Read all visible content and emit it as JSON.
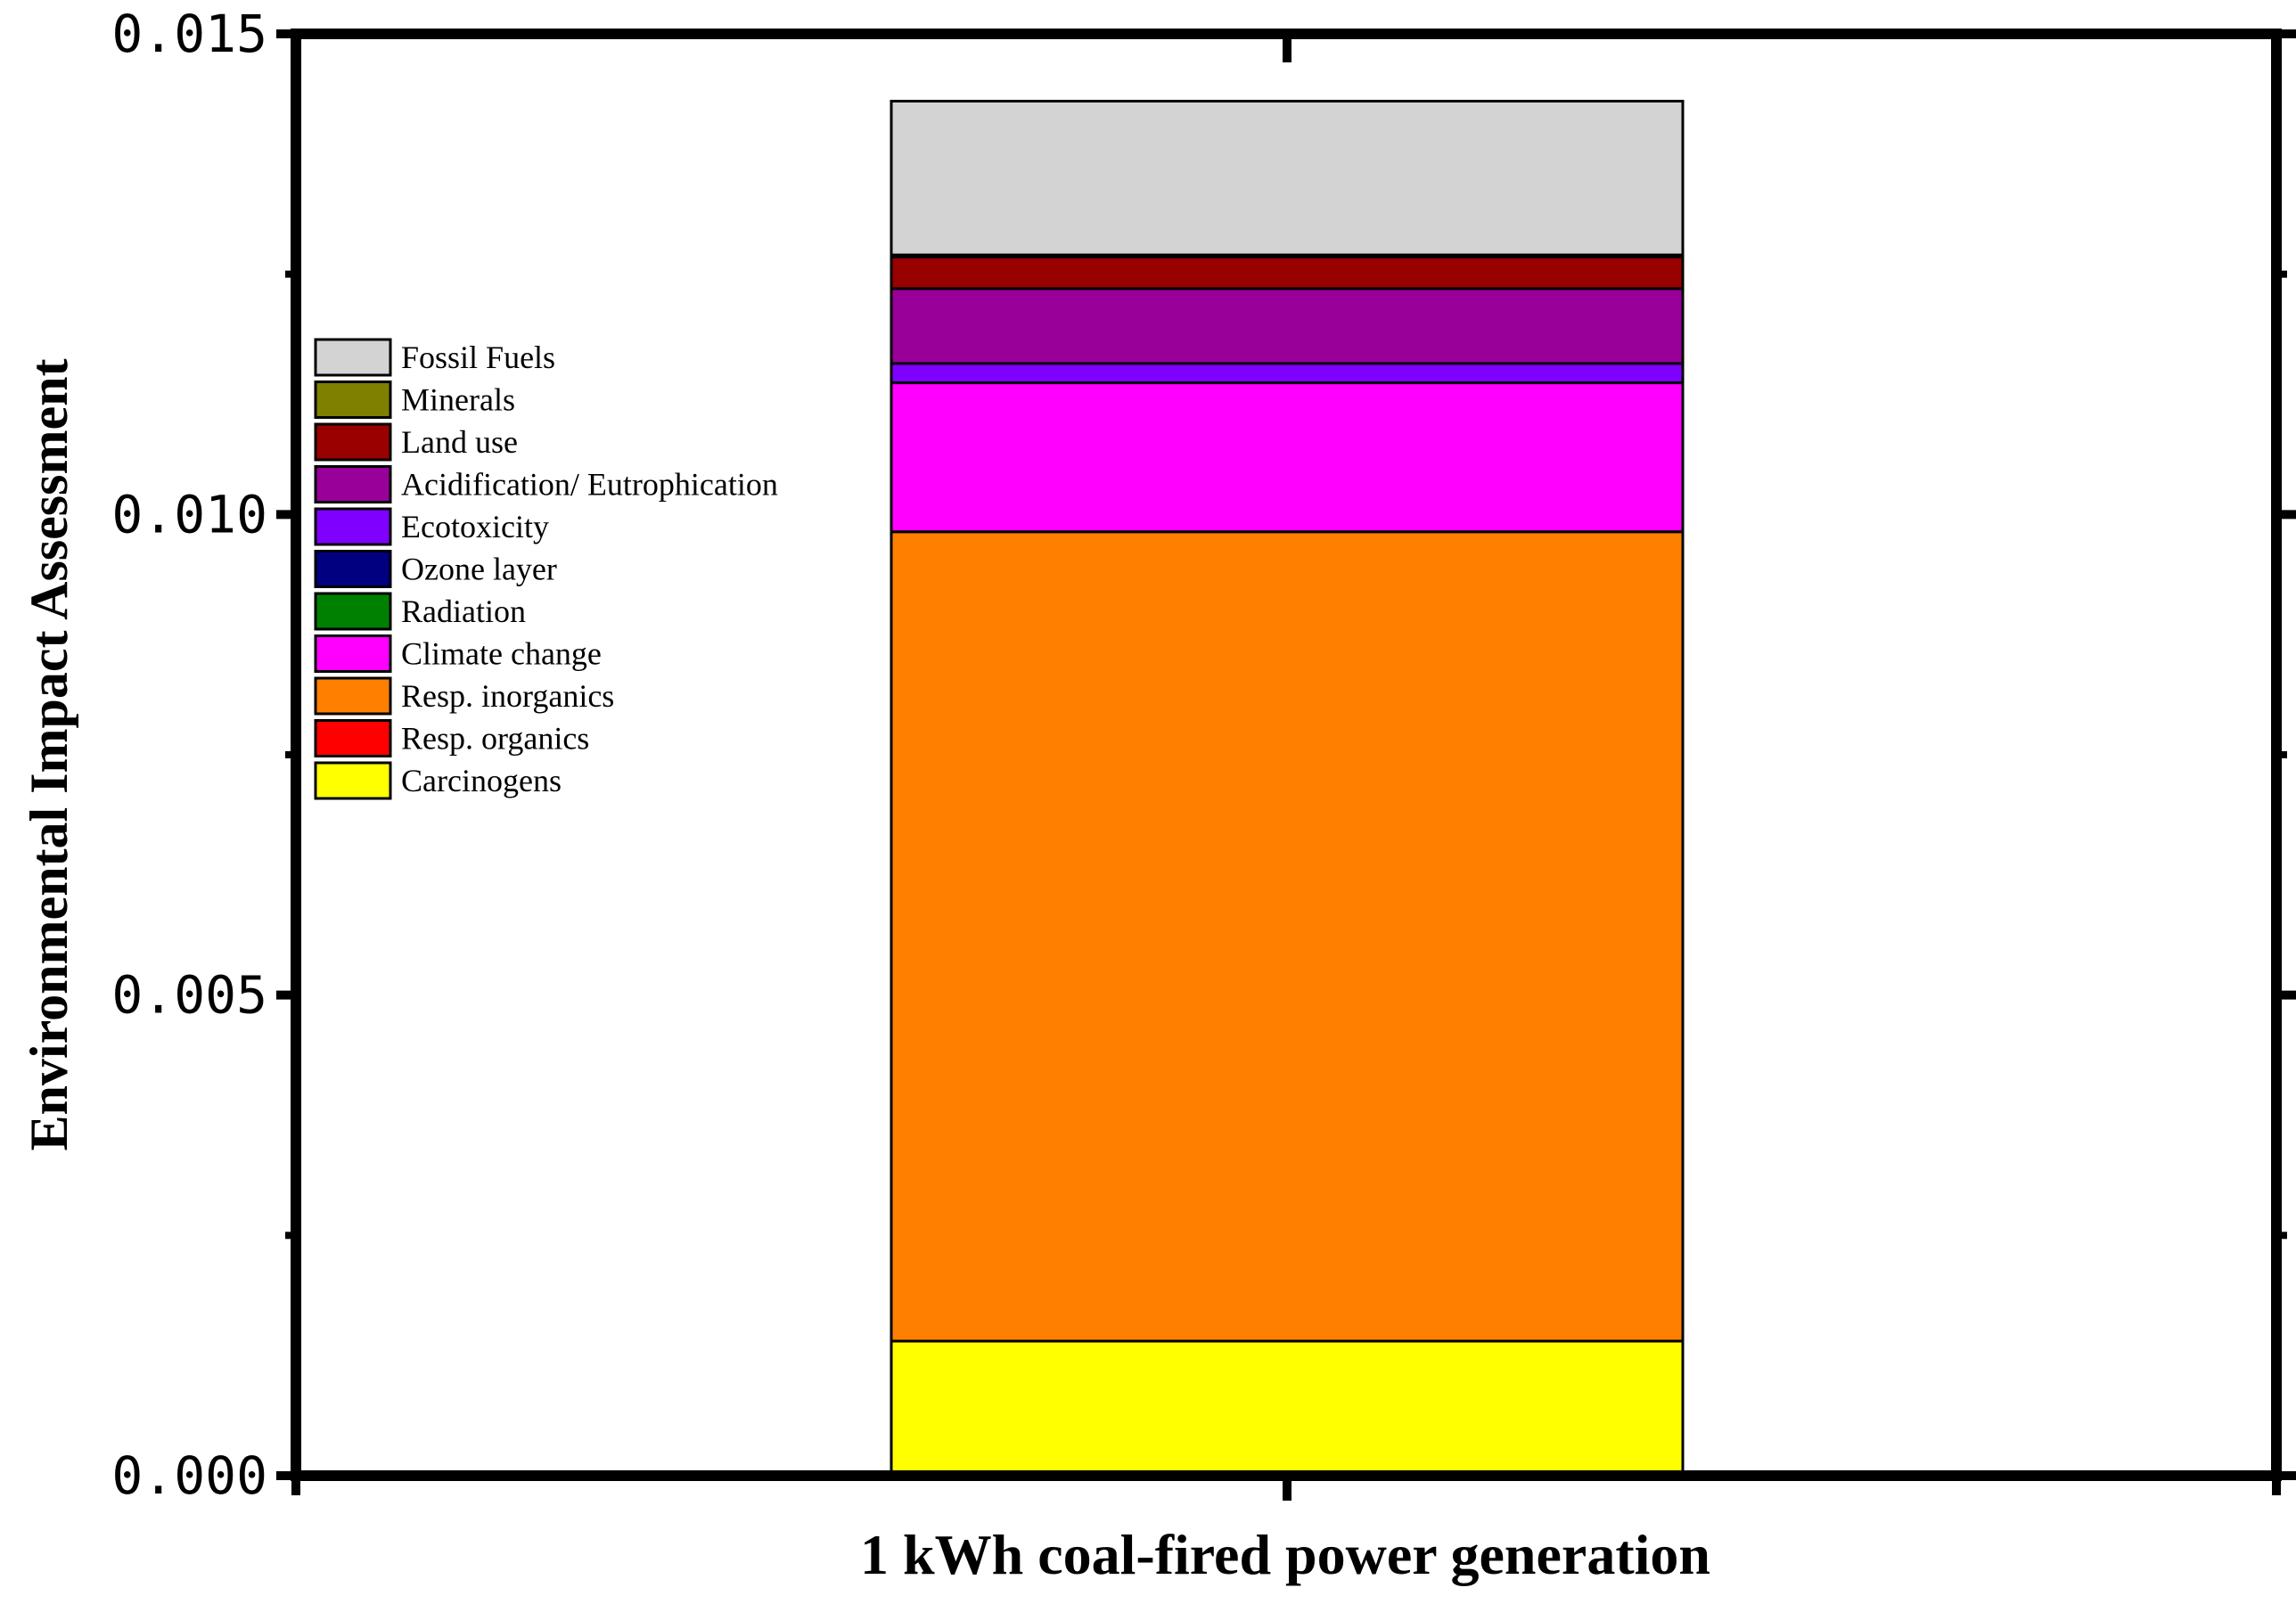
{
  "chart_data": {
    "type": "bar",
    "stacked": true,
    "categories": [
      "1 kWh coal-fired power generation"
    ],
    "xlabel": "1 kWh coal-fired power generation",
    "ylabel": "Environmental Impact Assessment",
    "ylim": [
      0,
      0.015
    ],
    "yticks": [
      "0.000",
      "0.005",
      "0.010",
      "0.015"
    ],
    "ytick_values": [
      0,
      0.005,
      0.01,
      0.015
    ],
    "grid": false,
    "legend_position": "upper-left",
    "series": [
      {
        "name": "Carcinogens",
        "color": "#FFFF00",
        "values": [
          0.0014
        ]
      },
      {
        "name": "Resp. organics",
        "color": "#FF0000",
        "values": [
          0.0
        ]
      },
      {
        "name": "Resp. inorganics",
        "color": "#FF8000",
        "values": [
          0.00842
        ]
      },
      {
        "name": "Climate change",
        "color": "#FF00FF",
        "values": [
          0.00155
        ]
      },
      {
        "name": "Radiation",
        "color": "#008000",
        "values": [
          0.0
        ]
      },
      {
        "name": "Ozone layer",
        "color": "#000080",
        "values": [
          0.0
        ]
      },
      {
        "name": "Ecotoxicity",
        "color": "#8000FF",
        "values": [
          0.0002
        ]
      },
      {
        "name": "Acidification/ Eutrophication",
        "color": "#990099",
        "values": [
          0.00078
        ]
      },
      {
        "name": "Land use",
        "color": "#990000",
        "values": [
          0.00033
        ]
      },
      {
        "name": "Minerals",
        "color": "#808000",
        "values": [
          2e-05
        ]
      },
      {
        "name": "Fossil Fuels",
        "color": "#D3D3D3",
        "values": [
          0.0016
        ]
      }
    ],
    "legend_order": [
      "Fossil Fuels",
      "Minerals",
      "Land use",
      "Acidification/ Eutrophication",
      "Ecotoxicity",
      "Ozone layer",
      "Radiation",
      "Climate change",
      "Resp. inorganics",
      "Resp. organics",
      "Carcinogens"
    ]
  }
}
